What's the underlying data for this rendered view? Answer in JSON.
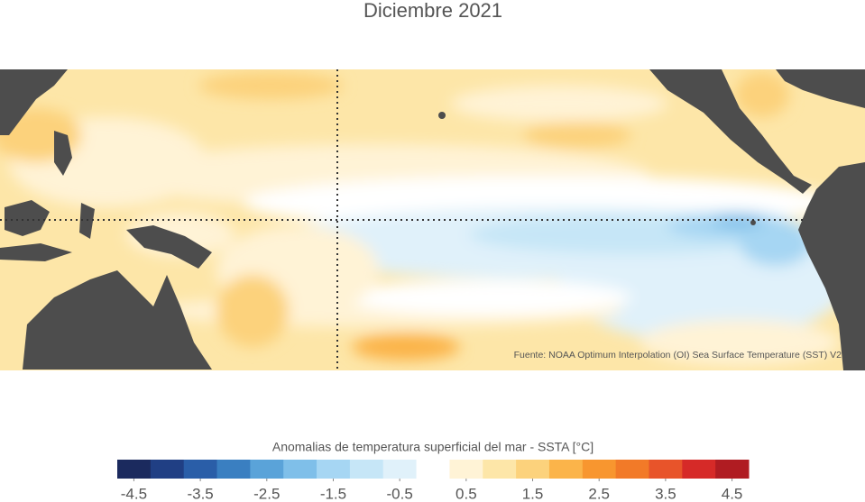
{
  "map": {
    "title": "Diciembre 2021",
    "source": "Fuente: NOAA Optimum Interpolation (OI) Sea Surface Temperature (SST) V2"
  },
  "legend": {
    "title": "Anomalias de temperatura superficial del mar - SSTA  [°C]",
    "range": [
      -4.75,
      4.75
    ],
    "ticks": [
      -4.5,
      -3.5,
      -2.5,
      -1.5,
      -0.5,
      0.5,
      1.5,
      2.5,
      3.5,
      4.5
    ],
    "colors": [
      "#1b2a5e",
      "#203f84",
      "#2a5ea8",
      "#3a7fc1",
      "#5aa3d9",
      "#7fbfe9",
      "#a6d6f3",
      "#c6e6f7",
      "#e0f1fa",
      "#ffffff",
      "#fff3d6",
      "#fde6a8",
      "#fcd27c",
      "#fbb44a",
      "#f8962f",
      "#f27a28",
      "#e8542a",
      "#d62a28",
      "#b01c22"
    ]
  }
}
